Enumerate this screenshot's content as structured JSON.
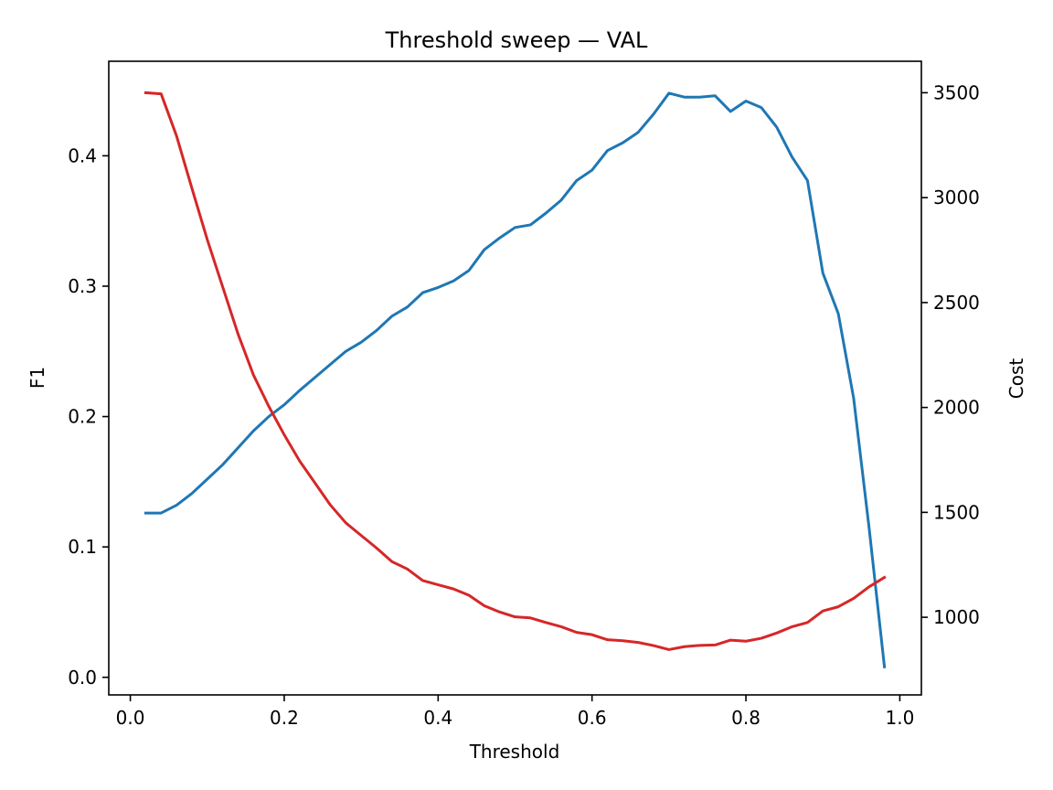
{
  "chart_data": {
    "type": "line",
    "title": "Threshold sweep — VAL",
    "xlabel": "Threshold",
    "ylabel_left": "F1",
    "ylabel_right": "Cost",
    "xlim": [
      -0.028,
      1.028
    ],
    "ylim_left": [
      -0.0135,
      0.4725
    ],
    "ylim_right": [
      630,
      3650
    ],
    "x_ticks": [
      0.0,
      0.2,
      0.4,
      0.6,
      0.8,
      1.0
    ],
    "x_tick_labels": [
      "0.0",
      "0.2",
      "0.4",
      "0.6",
      "0.8",
      "1.0"
    ],
    "y_left_ticks": [
      0.0,
      0.1,
      0.2,
      0.3,
      0.4
    ],
    "y_left_tick_labels": [
      "0.0",
      "0.1",
      "0.2",
      "0.3",
      "0.4"
    ],
    "y_right_ticks": [
      1000,
      1500,
      2000,
      2500,
      3000,
      3500
    ],
    "y_right_tick_labels": [
      "1000",
      "1500",
      "2000",
      "2500",
      "3000",
      "3500"
    ],
    "grid": false,
    "x": [
      0.02,
      0.04,
      0.06,
      0.08,
      0.1,
      0.12,
      0.14,
      0.16,
      0.18,
      0.2,
      0.22,
      0.24,
      0.26,
      0.28,
      0.3,
      0.32,
      0.34,
      0.36,
      0.38,
      0.4,
      0.42,
      0.44,
      0.46,
      0.48,
      0.5,
      0.52,
      0.54,
      0.56,
      0.58,
      0.6,
      0.62,
      0.64,
      0.66,
      0.68,
      0.7,
      0.72,
      0.74,
      0.76,
      0.78,
      0.8,
      0.82,
      0.84,
      0.86,
      0.88,
      0.9,
      0.92,
      0.94,
      0.96,
      0.98
    ],
    "series": [
      {
        "axis": "left",
        "color": "#1f77b4",
        "values": [
          0.126,
          0.126,
          0.132,
          0.141,
          0.152,
          0.163,
          0.176,
          0.189,
          0.2,
          0.209,
          0.22,
          0.23,
          0.24,
          0.25,
          0.257,
          0.266,
          0.277,
          0.284,
          0.295,
          0.299,
          0.304,
          0.312,
          0.328,
          0.337,
          0.345,
          0.347,
          0.356,
          0.366,
          0.381,
          0.389,
          0.404,
          0.41,
          0.418,
          0.432,
          0.448,
          0.445,
          0.445,
          0.446,
          0.434,
          0.442,
          0.437,
          0.422,
          0.399,
          0.381,
          0.31,
          0.279,
          0.214,
          0.115,
          0.008
        ]
      },
      {
        "axis": "right",
        "color": "#d62728",
        "values": [
          3500,
          3495,
          3295,
          3045,
          2800,
          2575,
          2350,
          2155,
          2005,
          1870,
          1745,
          1640,
          1535,
          1450,
          1390,
          1330,
          1265,
          1230,
          1175,
          1155,
          1135,
          1105,
          1055,
          1025,
          1002,
          997,
          975,
          955,
          928,
          917,
          893,
          888,
          880,
          865,
          846,
          860,
          866,
          868,
          891,
          886,
          900,
          925,
          955,
          975,
          1030,
          1050,
          1090,
          1145,
          1190
        ]
      }
    ]
  }
}
